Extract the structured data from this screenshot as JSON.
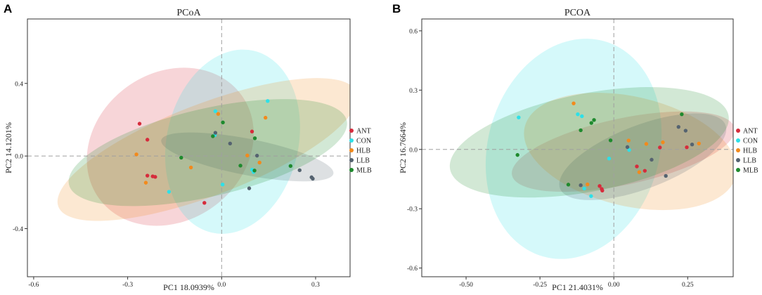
{
  "panel_letters": [
    "A",
    "B"
  ],
  "colors": {
    "ANT": "#d62c3c",
    "CON": "#2ee0e8",
    "HLB": "#f28a1c",
    "LLB": "#556370",
    "MLB": "#1f8a2e"
  },
  "chart_data": [
    {
      "type": "scatter",
      "panel": "A",
      "title": "PCoA",
      "xlabel": "PC1 18.0939%",
      "ylabel": "PC2 14.1201%",
      "xlim": [
        -0.62,
        0.41
      ],
      "ylim": [
        -0.665,
        0.755
      ],
      "xticks": [
        -0.6,
        -0.3,
        0.0,
        0.3
      ],
      "xtick_labels": [
        "-0.6",
        "-0.3",
        "0.0",
        "0.3"
      ],
      "yticks": [
        -0.4,
        0.0,
        0.4
      ],
      "ytick_labels": [
        "-0.4",
        "0.0",
        "0.4"
      ],
      "legend": [
        "ANT",
        "CON",
        "HLB",
        "LLB",
        "MLB"
      ],
      "ellipses": [
        {
          "group": "ANT",
          "cx": -0.164,
          "cy": 0.051,
          "rx": 0.281,
          "ry": 0.407,
          "angle": 36
        },
        {
          "group": "CON",
          "cx": 0.035,
          "cy": 0.079,
          "rx": 0.21,
          "ry": 0.514,
          "angle": -13
        },
        {
          "group": "HLB",
          "cx": -0.045,
          "cy": 0.036,
          "rx": 0.51,
          "ry": 0.252,
          "angle": 21
        },
        {
          "group": "LLB",
          "cx": 0.082,
          "cy": -0.005,
          "rx": 0.28,
          "ry": 0.1,
          "angle": -11
        },
        {
          "group": "MLB",
          "cx": -0.044,
          "cy": 0.019,
          "rx": 0.455,
          "ry": 0.242,
          "angle": 13
        }
      ],
      "series": [
        {
          "name": "ANT",
          "points": [
            [
              -0.262,
              0.178
            ],
            [
              -0.237,
              0.09
            ],
            [
              -0.237,
              -0.108
            ],
            [
              -0.212,
              -0.115
            ],
            [
              -0.055,
              -0.258
            ],
            [
              0.097,
              0.135
            ],
            [
              -0.22,
              -0.112
            ]
          ]
        },
        {
          "name": "CON",
          "points": [
            [
              -0.168,
              -0.197
            ],
            [
              -0.02,
              0.247
            ],
            [
              -0.022,
              0.115
            ],
            [
              0.003,
              -0.157
            ],
            [
              0.102,
              -0.088
            ],
            [
              0.147,
              0.303
            ],
            [
              0.097,
              -0.075
            ]
          ]
        },
        {
          "name": "HLB",
          "points": [
            [
              -0.272,
              0.009
            ],
            [
              -0.242,
              -0.147
            ],
            [
              -0.098,
              -0.063
            ],
            [
              0.082,
              0.003
            ],
            [
              0.14,
              0.211
            ],
            [
              -0.011,
              0.232
            ],
            [
              0.121,
              -0.036
            ]
          ]
        },
        {
          "name": "LLB",
          "points": [
            [
              -0.02,
              0.128
            ],
            [
              0.027,
              0.069
            ],
            [
              0.113,
              0.002
            ],
            [
              0.249,
              -0.078
            ],
            [
              0.291,
              -0.125
            ],
            [
              0.287,
              -0.117
            ],
            [
              0.088,
              -0.178
            ]
          ]
        },
        {
          "name": "MLB",
          "points": [
            [
              -0.028,
              0.109
            ],
            [
              -0.129,
              -0.009
            ],
            [
              0.105,
              -0.08
            ],
            [
              0.22,
              -0.055
            ],
            [
              0.004,
              0.185
            ],
            [
              0.106,
              0.098
            ],
            [
              0.06,
              -0.053
            ]
          ]
        }
      ]
    },
    {
      "type": "scatter",
      "panel": "B",
      "title": "PCOA",
      "xlabel": "PC1 21.4031%",
      "ylabel": "PC2 16.7664%",
      "xlim": [
        -0.65,
        0.404
      ],
      "ylim": [
        -0.644,
        0.66
      ],
      "xticks": [
        -0.5,
        -0.25,
        0.0,
        0.25
      ],
      "xtick_labels": [
        "-0.50",
        "-0.25",
        "0.00",
        "0.25"
      ],
      "yticks": [
        -0.6,
        -0.3,
        0.0,
        0.3,
        0.6
      ],
      "ytick_labels": [
        "-0.6",
        "-0.3",
        "0.0",
        "0.3",
        "0.6"
      ],
      "legend": [
        "ANT",
        "CON",
        "HLB",
        "LLB",
        "MLB"
      ],
      "ellipses": [
        {
          "group": "ANT",
          "cx": 0.032,
          "cy": -0.011,
          "rx": 0.385,
          "ry": 0.168,
          "angle": 12
        },
        {
          "group": "CON",
          "cx": -0.136,
          "cy": 0.003,
          "rx": 0.29,
          "ry": 0.566,
          "angle": -16
        },
        {
          "group": "HLB",
          "cx": 0.056,
          "cy": -0.01,
          "rx": 0.367,
          "ry": 0.277,
          "angle": -13
        },
        {
          "group": "LLB",
          "cx": 0.098,
          "cy": -0.037,
          "rx": 0.3,
          "ry": 0.16,
          "angle": 21
        },
        {
          "group": "MLB",
          "cx": -0.083,
          "cy": 0.036,
          "rx": 0.48,
          "ry": 0.248,
          "angle": 11
        }
      ],
      "series": [
        {
          "name": "ANT",
          "points": [
            [
              -0.048,
              -0.185
            ],
            [
              -0.041,
              -0.2
            ],
            [
              -0.039,
              -0.208
            ],
            [
              0.078,
              -0.086
            ],
            [
              0.105,
              -0.108
            ],
            [
              0.156,
              0.01
            ],
            [
              0.247,
              0.011
            ]
          ]
        },
        {
          "name": "CON",
          "points": [
            [
              -0.322,
              0.162
            ],
            [
              -0.122,
              0.178
            ],
            [
              -0.108,
              0.168
            ],
            [
              -0.1,
              -0.198
            ],
            [
              -0.077,
              -0.236
            ],
            [
              0.052,
              -0.003
            ],
            [
              -0.016,
              -0.046
            ]
          ]
        },
        {
          "name": "HLB",
          "points": [
            [
              -0.136,
              0.233
            ],
            [
              -0.089,
              -0.177
            ],
            [
              0.05,
              0.045
            ],
            [
              0.086,
              -0.115
            ],
            [
              0.11,
              0.028
            ],
            [
              0.166,
              0.036
            ],
            [
              0.288,
              0.03
            ]
          ]
        },
        {
          "name": "LLB",
          "points": [
            [
              -0.112,
              -0.181
            ],
            [
              0.046,
              0.012
            ],
            [
              0.128,
              -0.052
            ],
            [
              0.176,
              -0.134
            ],
            [
              0.219,
              0.114
            ],
            [
              0.243,
              0.095
            ],
            [
              0.265,
              0.025
            ]
          ]
        },
        {
          "name": "MLB",
          "points": [
            [
              -0.326,
              -0.028
            ],
            [
              -0.112,
              0.097
            ],
            [
              -0.076,
              0.134
            ],
            [
              -0.067,
              0.149
            ],
            [
              -0.011,
              0.046
            ],
            [
              0.23,
              0.178
            ],
            [
              -0.154,
              -0.178
            ]
          ]
        }
      ]
    }
  ]
}
